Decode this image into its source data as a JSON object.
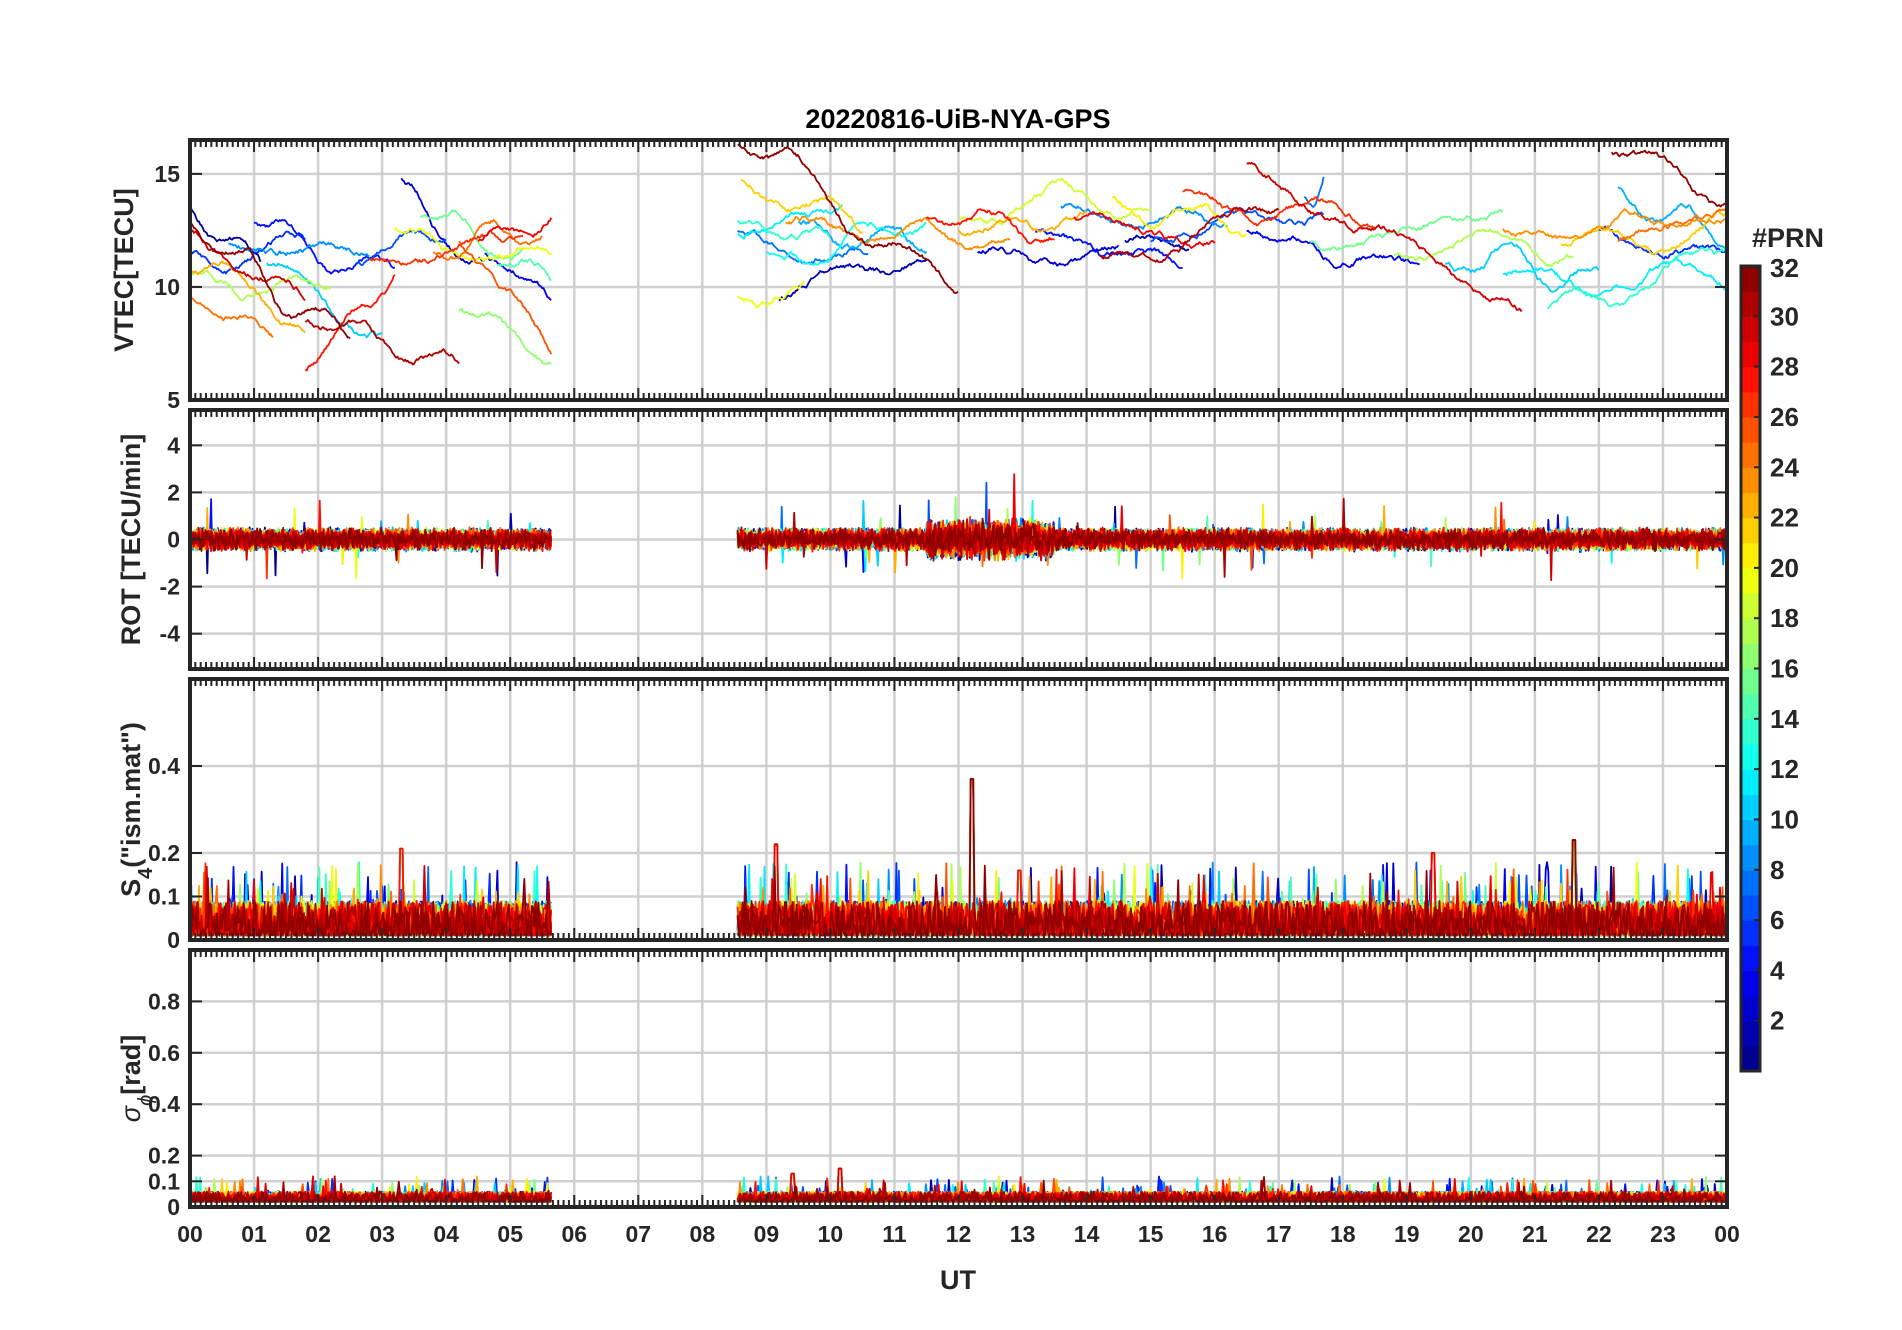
{
  "chart_data": {
    "type": "line",
    "title": "20220816-UiB-NYA-GPS",
    "xlabel": "UT",
    "x_unit": "hour",
    "x_tick_labels": [
      "00",
      "01",
      "02",
      "03",
      "04",
      "05",
      "06",
      "07",
      "08",
      "09",
      "10",
      "11",
      "12",
      "13",
      "14",
      "15",
      "16",
      "17",
      "18",
      "19",
      "20",
      "21",
      "22",
      "23",
      "00"
    ],
    "xlim": [
      0,
      24
    ],
    "grid": true,
    "data_coverage_hours": [
      [
        0,
        5.65
      ],
      [
        8.55,
        24
      ]
    ],
    "panels": [
      {
        "id": "vtec",
        "ylabel": "VTEC[TECU]",
        "ylim": [
          5,
          16.5
        ],
        "y_ticks": [
          5,
          10,
          15
        ],
        "y_tick_labels": [
          "5",
          "10",
          "15"
        ],
        "typical_range": [
          6,
          16
        ],
        "noise": 0.18
      },
      {
        "id": "rot",
        "ylabel": "ROT [TECU/min]",
        "ylim": [
          -5.5,
          5.5
        ],
        "y_ticks": [
          -4,
          -2,
          0,
          2,
          4
        ],
        "y_tick_labels": [
          "-4",
          "-2",
          "0",
          "2",
          "4"
        ],
        "typical_range": [
          -1.0,
          1.0
        ],
        "noise": 0.35
      },
      {
        "id": "s4",
        "ylabel_main": "S",
        "ylabel_sub": "4",
        "ylabel_rest": "(\"ism.mat\")",
        "ylim": [
          0,
          0.6
        ],
        "y_ticks": [
          0,
          0.1,
          0.2,
          0.4
        ],
        "y_tick_labels": [
          "0",
          "0.1",
          "0.2",
          "0.4"
        ],
        "typical_range": [
          0.01,
          0.09
        ],
        "peaks": [
          [
            3.3,
            0.21
          ],
          [
            9.15,
            0.22
          ],
          [
            12.2,
            0.37
          ],
          [
            12.95,
            0.16
          ],
          [
            19.4,
            0.2
          ],
          [
            21.6,
            0.23
          ]
        ]
      },
      {
        "id": "sigma_phi",
        "ylabel_main": "σ",
        "ylabel_sub": "ϕ",
        "ylabel_rest": "[rad]",
        "ylim": [
          0,
          1.0
        ],
        "y_ticks": [
          0,
          0.1,
          0.2,
          0.4,
          0.6,
          0.8
        ],
        "y_tick_labels": [
          "0",
          "0.1",
          "0.2",
          "0.4",
          "0.6",
          "0.8"
        ],
        "typical_range": [
          0.02,
          0.06
        ],
        "peaks": [
          [
            9.4,
            0.13
          ],
          [
            10.15,
            0.15
          ]
        ]
      }
    ],
    "colorbar": {
      "label": "#PRN",
      "colormap": "jet",
      "min": 1,
      "max": 32,
      "levels": 32,
      "tick_values": [
        2,
        4,
        6,
        8,
        10,
        12,
        14,
        16,
        18,
        20,
        22,
        24,
        26,
        28,
        30,
        32
      ],
      "tick_labels": [
        "2",
        "4",
        "6",
        "8",
        "10",
        "12",
        "14",
        "16",
        "18",
        "20",
        "22",
        "24",
        "26",
        "28",
        "30",
        "32"
      ]
    },
    "series": [
      {
        "prn": 1,
        "vtec_segments": [
          [
            0.0,
            1.1,
            13.5,
            11.0
          ]
        ]
      },
      {
        "prn": 2,
        "vtec_segments": [
          [
            9.2,
            11.5,
            9.3,
            11.2
          ],
          [
            14.6,
            15.6,
            12.0,
            11.5
          ]
        ]
      },
      {
        "prn": 3,
        "vtec_segments": [
          [
            3.3,
            4.6,
            14.8,
            11.2
          ],
          [
            12.3,
            14.5,
            11.5,
            11.5
          ]
        ]
      },
      {
        "prn": 4,
        "vtec_segments": [
          [
            4.6,
            5.65,
            11.5,
            9.3
          ],
          [
            16.5,
            19.2,
            12.5,
            11.2
          ]
        ]
      },
      {
        "prn": 5,
        "vtec_segments": [
          [
            1.0,
            3.2,
            12.8,
            11.0
          ],
          [
            13.2,
            15.5,
            12.5,
            11.0
          ]
        ]
      },
      {
        "prn": 6,
        "vtec_segments": [
          [
            0.0,
            1.8,
            11.5,
            12.3
          ],
          [
            22.0,
            24.0,
            12.5,
            11.5
          ]
        ]
      },
      {
        "prn": 7,
        "vtec_segments": [
          [
            2.6,
            4.0,
            11.0,
            12.0
          ],
          [
            15.0,
            17.7,
            12.0,
            13.0
          ]
        ]
      },
      {
        "prn": 8,
        "vtec_segments": [
          [
            8.55,
            10.6,
            12.5,
            12.0
          ],
          [
            17.4,
            17.7,
            14.0,
            15.0
          ]
        ]
      },
      {
        "prn": 9,
        "vtec_segments": [
          [
            0.6,
            2.8,
            12.0,
            11.5
          ],
          [
            13.6,
            16.2,
            13.5,
            12.3
          ]
        ]
      },
      {
        "prn": 10,
        "vtec_segments": [
          [
            9.5,
            11.5,
            12.8,
            11.8
          ],
          [
            22.3,
            24.0,
            14.5,
            12.0
          ]
        ]
      },
      {
        "prn": 11,
        "vtec_segments": [
          [
            1.2,
            3.0,
            11.0,
            8.0
          ],
          [
            19.6,
            22.0,
            11.0,
            10.3
          ]
        ]
      },
      {
        "prn": 12,
        "vtec_segments": [
          [
            8.55,
            10.2,
            12.3,
            13.5
          ],
          [
            20.5,
            24.0,
            10.5,
            10.0
          ]
        ]
      },
      {
        "prn": 13,
        "vtec_segments": [
          [
            9.0,
            11.5,
            11.5,
            12.5
          ]
        ]
      },
      {
        "prn": 14,
        "vtec_segments": [
          [
            8.55,
            10.0,
            13.0,
            12.0
          ],
          [
            21.2,
            24.0,
            9.0,
            11.0
          ]
        ]
      },
      {
        "prn": 15,
        "vtec_segments": [
          [
            4.8,
            5.65,
            11.0,
            10.0
          ]
        ]
      },
      {
        "prn": 16,
        "vtec_segments": [
          [
            3.6,
            5.2,
            13.0,
            11.5
          ],
          [
            17.5,
            20.5,
            12.0,
            13.0
          ]
        ]
      },
      {
        "prn": 17,
        "vtec_segments": [
          [
            4.2,
            5.65,
            9.0,
            6.2
          ]
        ]
      },
      {
        "prn": 18,
        "vtec_segments": [
          [
            0.0,
            2.2,
            10.6,
            10.3
          ],
          [
            18.8,
            21.6,
            11.3,
            11.5
          ]
        ]
      },
      {
        "prn": 19,
        "vtec_segments": [
          [
            12.0,
            15.0,
            13.0,
            13.5
          ]
        ]
      },
      {
        "prn": 20,
        "vtec_segments": [
          [
            3.2,
            5.65,
            12.5,
            11.8
          ],
          [
            8.55,
            9.6,
            9.5,
            10.5
          ]
        ]
      },
      {
        "prn": 21,
        "vtec_segments": [
          [
            14.4,
            16.5,
            14.0,
            12.5
          ]
        ]
      },
      {
        "prn": 22,
        "vtec_segments": [
          [
            8.6,
            10.5,
            14.7,
            12.6
          ],
          [
            21.4,
            24.0,
            11.8,
            13.0
          ]
        ]
      },
      {
        "prn": 23,
        "vtec_segments": [
          [
            0.0,
            1.8,
            10.8,
            8.3
          ],
          [
            12.0,
            14.0,
            12.5,
            13.0
          ]
        ]
      },
      {
        "prn": 24,
        "vtec_segments": [
          [
            9.3,
            12.8,
            12.8,
            12.0
          ],
          [
            20.5,
            24.0,
            12.5,
            13.0
          ]
        ]
      },
      {
        "prn": 25,
        "vtec_segments": [
          [
            0.0,
            1.3,
            9.5,
            7.8
          ],
          [
            3.8,
            5.5,
            11.5,
            12.5
          ],
          [
            22.3,
            24.0,
            12.0,
            13.5
          ]
        ]
      },
      {
        "prn": 26,
        "vtec_segments": [
          [
            4.2,
            5.65,
            12.0,
            6.8
          ]
        ]
      },
      {
        "prn": 27,
        "vtec_segments": [
          [
            2.8,
            5.2,
            11.2,
            12.0
          ],
          [
            15.5,
            18.5,
            14.2,
            12.5
          ]
        ]
      },
      {
        "prn": 28,
        "vtec_segments": [
          [
            1.8,
            3.2,
            6.3,
            10.8
          ],
          [
            11.5,
            13.5,
            13.0,
            12.0
          ]
        ]
      },
      {
        "prn": 29,
        "vtec_segments": [
          [
            4.5,
            5.65,
            12.0,
            13.5
          ],
          [
            13.8,
            16.0,
            13.0,
            12.0
          ]
        ]
      },
      {
        "prn": 30,
        "vtec_segments": [
          [
            0.0,
            1.8,
            12.5,
            10.0
          ],
          [
            16.5,
            20.8,
            15.5,
            9.5
          ]
        ]
      },
      {
        "prn": 31,
        "vtec_segments": [
          [
            1.8,
            4.2,
            8.5,
            7.0
          ],
          [
            14.2,
            17.0,
            11.5,
            13.0
          ]
        ]
      },
      {
        "prn": 32,
        "vtec_segments": [
          [
            0.0,
            2.5,
            12.8,
            7.8
          ],
          [
            8.55,
            12.0,
            16.3,
            10.0
          ],
          [
            22.2,
            24.0,
            16.0,
            13.0
          ]
        ]
      }
    ]
  }
}
